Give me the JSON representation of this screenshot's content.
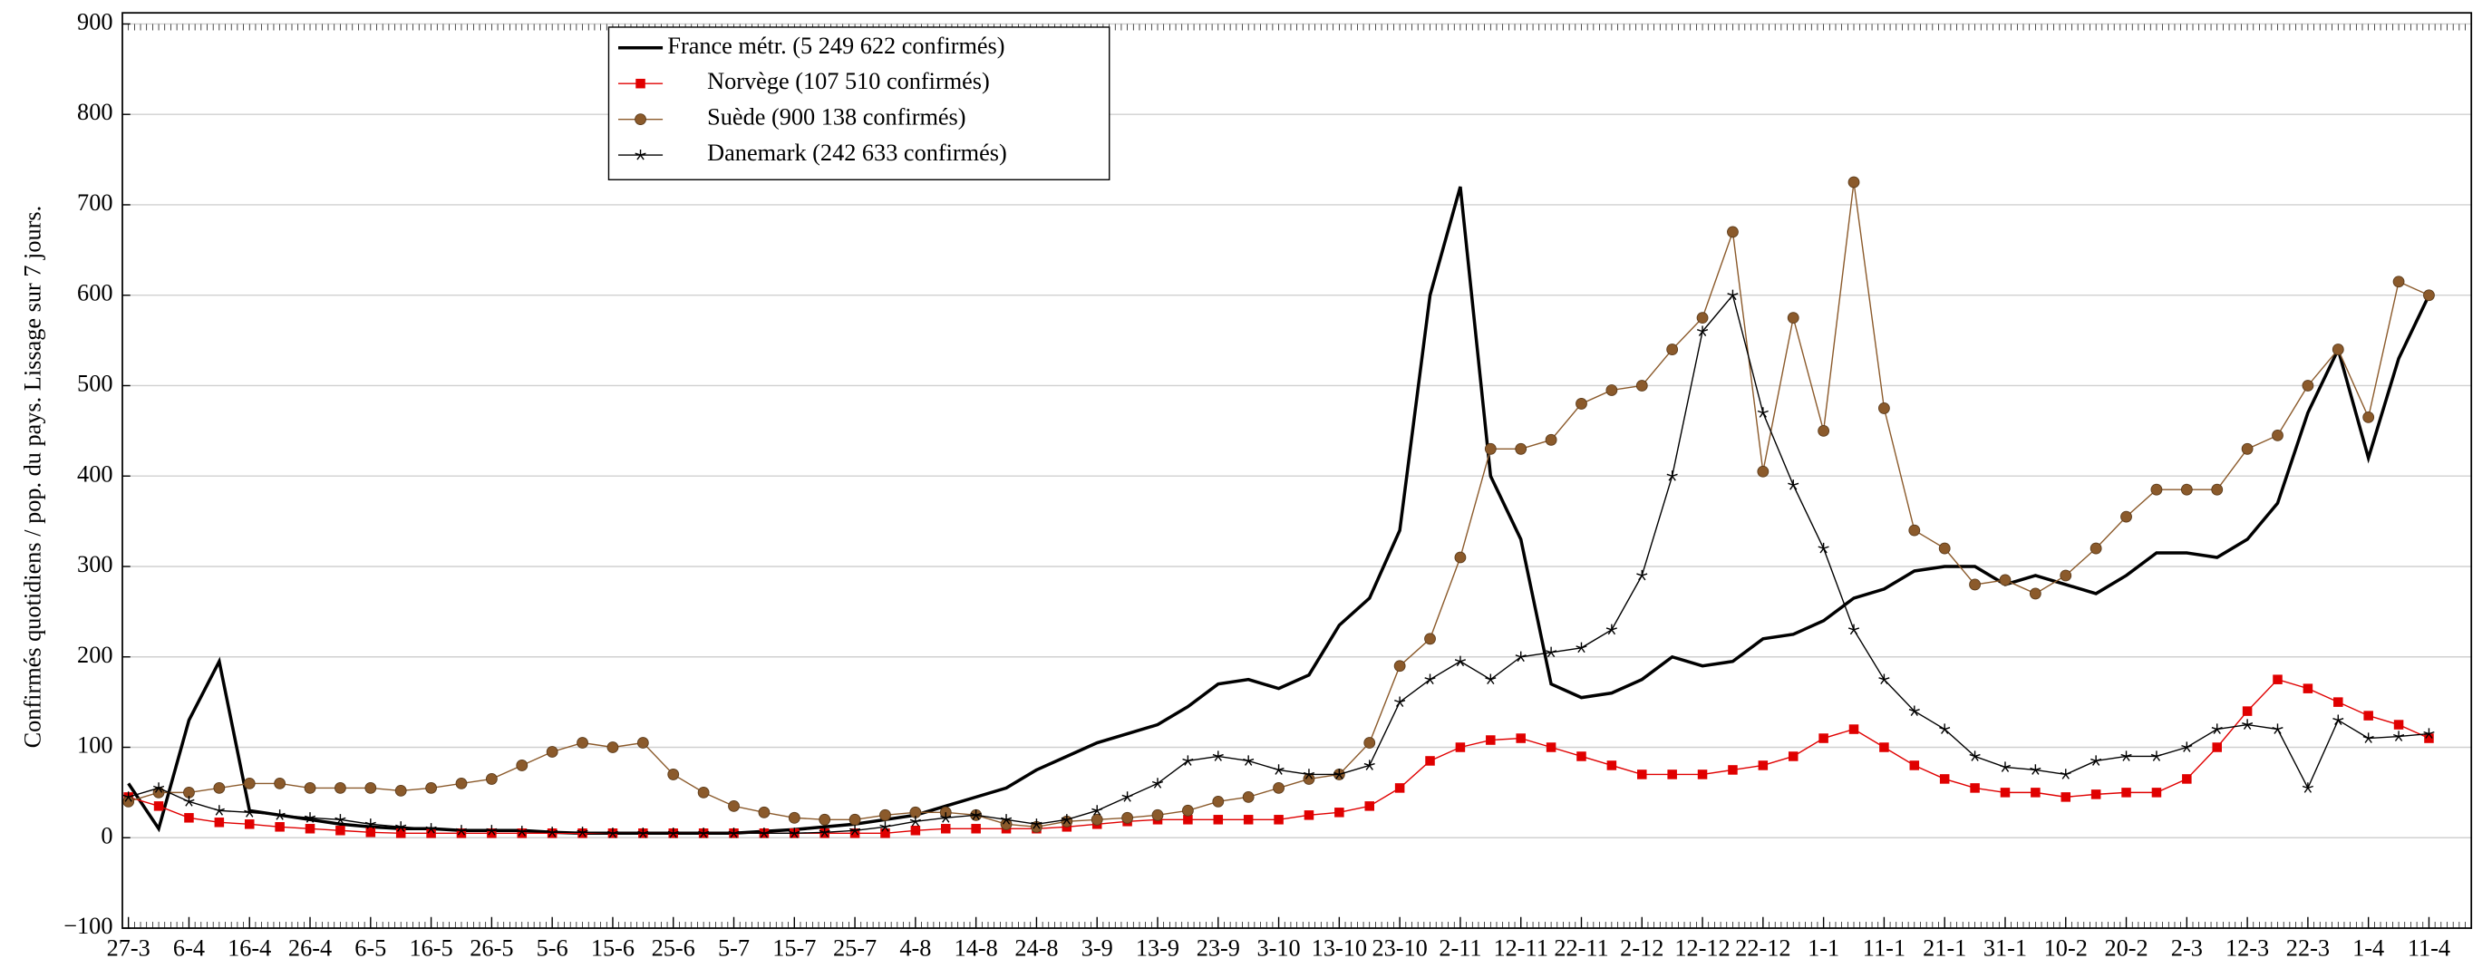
{
  "chart_data": {
    "type": "line",
    "ylabel": "Confirmés quotidiens / pop. du pays. Lissage sur 7 jours.",
    "x": [
      0,
      5,
      10,
      15,
      20,
      25,
      30,
      35,
      40,
      45,
      50,
      55,
      60,
      65,
      70,
      75,
      80,
      85,
      90,
      95,
      100,
      105,
      110,
      115,
      120,
      125,
      130,
      135,
      140,
      145,
      150,
      155,
      160,
      165,
      170,
      175,
      180,
      185,
      190,
      195,
      200,
      205,
      210,
      215,
      220,
      225,
      230,
      235,
      240,
      245,
      250,
      255,
      260,
      265,
      270,
      275,
      280,
      285,
      290,
      295,
      300,
      305,
      310,
      315,
      320,
      325,
      330,
      335,
      340,
      345,
      350,
      355,
      360,
      365,
      370,
      375,
      380
    ],
    "series": [
      {
        "name": "France métr. (5 249 622 confirmés)",
        "color": "#000000",
        "marker": "none",
        "values": [
          60,
          10,
          130,
          195,
          30,
          25,
          20,
          15,
          12,
          10,
          10,
          8,
          8,
          8,
          6,
          5,
          5,
          5,
          5,
          5,
          5,
          7,
          9,
          12,
          15,
          20,
          25,
          35,
          45,
          55,
          75,
          90,
          105,
          115,
          125,
          145,
          170,
          175,
          165,
          180,
          235,
          265,
          340,
          600,
          720,
          400,
          330,
          170,
          155,
          160,
          175,
          200,
          190,
          195,
          220,
          225,
          240,
          265,
          275,
          295,
          300,
          300,
          280,
          290,
          280,
          270,
          290,
          315,
          315,
          310,
          330,
          370,
          470,
          540,
          420,
          530,
          600
        ]
      },
      {
        "name": "Norvège (107 510 confirmés)",
        "color": "#e00000",
        "marker": "square",
        "values": [
          45,
          35,
          22,
          17,
          15,
          12,
          10,
          8,
          6,
          5,
          5,
          5,
          5,
          5,
          5,
          5,
          5,
          5,
          5,
          5,
          5,
          5,
          5,
          5,
          5,
          5,
          8,
          10,
          10,
          10,
          10,
          12,
          15,
          18,
          20,
          20,
          20,
          20,
          20,
          25,
          28,
          35,
          55,
          85,
          100,
          108,
          110,
          100,
          90,
          80,
          70,
          70,
          70,
          75,
          80,
          90,
          110,
          120,
          100,
          80,
          65,
          55,
          50,
          50,
          45,
          48,
          50,
          50,
          65,
          100,
          140,
          175,
          165,
          150,
          135,
          125,
          110
        ]
      },
      {
        "name": "Suède (900 138 confirmés)",
        "color": "#8b5a2b",
        "marker": "circle",
        "values": [
          40,
          50,
          50,
          55,
          60,
          60,
          55,
          55,
          55,
          52,
          55,
          60,
          65,
          80,
          95,
          105,
          100,
          105,
          70,
          50,
          35,
          28,
          22,
          20,
          20,
          25,
          28,
          28,
          25,
          15,
          12,
          18,
          20,
          22,
          25,
          30,
          40,
          45,
          55,
          65,
          70,
          105,
          190,
          220,
          310,
          430,
          430,
          440,
          480,
          495,
          500,
          540,
          575,
          670,
          405,
          575,
          450,
          725,
          475,
          340,
          320,
          280,
          285,
          270,
          290,
          320,
          355,
          385,
          385,
          385,
          430,
          445,
          500,
          540,
          465,
          615,
          600
        ]
      },
      {
        "name": "Danemark (242 633 confirmés)",
        "color": "#000000",
        "marker": "star",
        "values": [
          45,
          55,
          40,
          30,
          28,
          25,
          22,
          20,
          15,
          12,
          10,
          8,
          8,
          7,
          6,
          6,
          5,
          5,
          5,
          5,
          5,
          5,
          5,
          6,
          8,
          12,
          18,
          22,
          25,
          20,
          15,
          20,
          30,
          45,
          60,
          85,
          90,
          85,
          75,
          70,
          70,
          80,
          150,
          175,
          195,
          175,
          200,
          205,
          210,
          230,
          290,
          400,
          560,
          600,
          470,
          390,
          320,
          230,
          175,
          140,
          120,
          90,
          78,
          75,
          70,
          85,
          90,
          90,
          100,
          120,
          125,
          120,
          55,
          130,
          110,
          112,
          115
        ]
      }
    ],
    "xlim": [
      -1,
      387
    ],
    "xticks": [
      {
        "value": 0,
        "label": "27-3"
      },
      {
        "value": 10,
        "label": "6-4"
      },
      {
        "value": 20,
        "label": "16-4"
      },
      {
        "value": 30,
        "label": "26-4"
      },
      {
        "value": 40,
        "label": "6-5"
      },
      {
        "value": 50,
        "label": "16-5"
      },
      {
        "value": 60,
        "label": "26-5"
      },
      {
        "value": 70,
        "label": "5-6"
      },
      {
        "value": 80,
        "label": "15-6"
      },
      {
        "value": 90,
        "label": "25-6"
      },
      {
        "value": 100,
        "label": "5-7"
      },
      {
        "value": 110,
        "label": "15-7"
      },
      {
        "value": 120,
        "label": "25-7"
      },
      {
        "value": 130,
        "label": "4-8"
      },
      {
        "value": 140,
        "label": "14-8"
      },
      {
        "value": 150,
        "label": "24-8"
      },
      {
        "value": 160,
        "label": "3-9"
      },
      {
        "value": 170,
        "label": "13-9"
      },
      {
        "value": 180,
        "label": "23-9"
      },
      {
        "value": 190,
        "label": "3-10"
      },
      {
        "value": 200,
        "label": "13-10"
      },
      {
        "value": 210,
        "label": "23-10"
      },
      {
        "value": 220,
        "label": "2-11"
      },
      {
        "value": 230,
        "label": "12-11"
      },
      {
        "value": 240,
        "label": "22-11"
      },
      {
        "value": 250,
        "label": "2-12"
      },
      {
        "value": 260,
        "label": "12-12"
      },
      {
        "value": 270,
        "label": "22-12"
      },
      {
        "value": 280,
        "label": "1-1"
      },
      {
        "value": 290,
        "label": "11-1"
      },
      {
        "value": 300,
        "label": "21-1"
      },
      {
        "value": 310,
        "label": "31-1"
      },
      {
        "value": 320,
        "label": "10-2"
      },
      {
        "value": 330,
        "label": "20-2"
      },
      {
        "value": 340,
        "label": "2-3"
      },
      {
        "value": 350,
        "label": "12-3"
      },
      {
        "value": 360,
        "label": "22-3"
      },
      {
        "value": 370,
        "label": "1-4"
      },
      {
        "value": 380,
        "label": "11-4"
      }
    ],
    "ylim": [
      -100,
      900
    ],
    "yticks": [
      {
        "value": -100,
        "label": "−100"
      },
      0,
      100,
      200,
      300,
      400,
      500,
      600,
      700,
      800,
      900
    ],
    "grid": true,
    "legend": "upper left"
  }
}
